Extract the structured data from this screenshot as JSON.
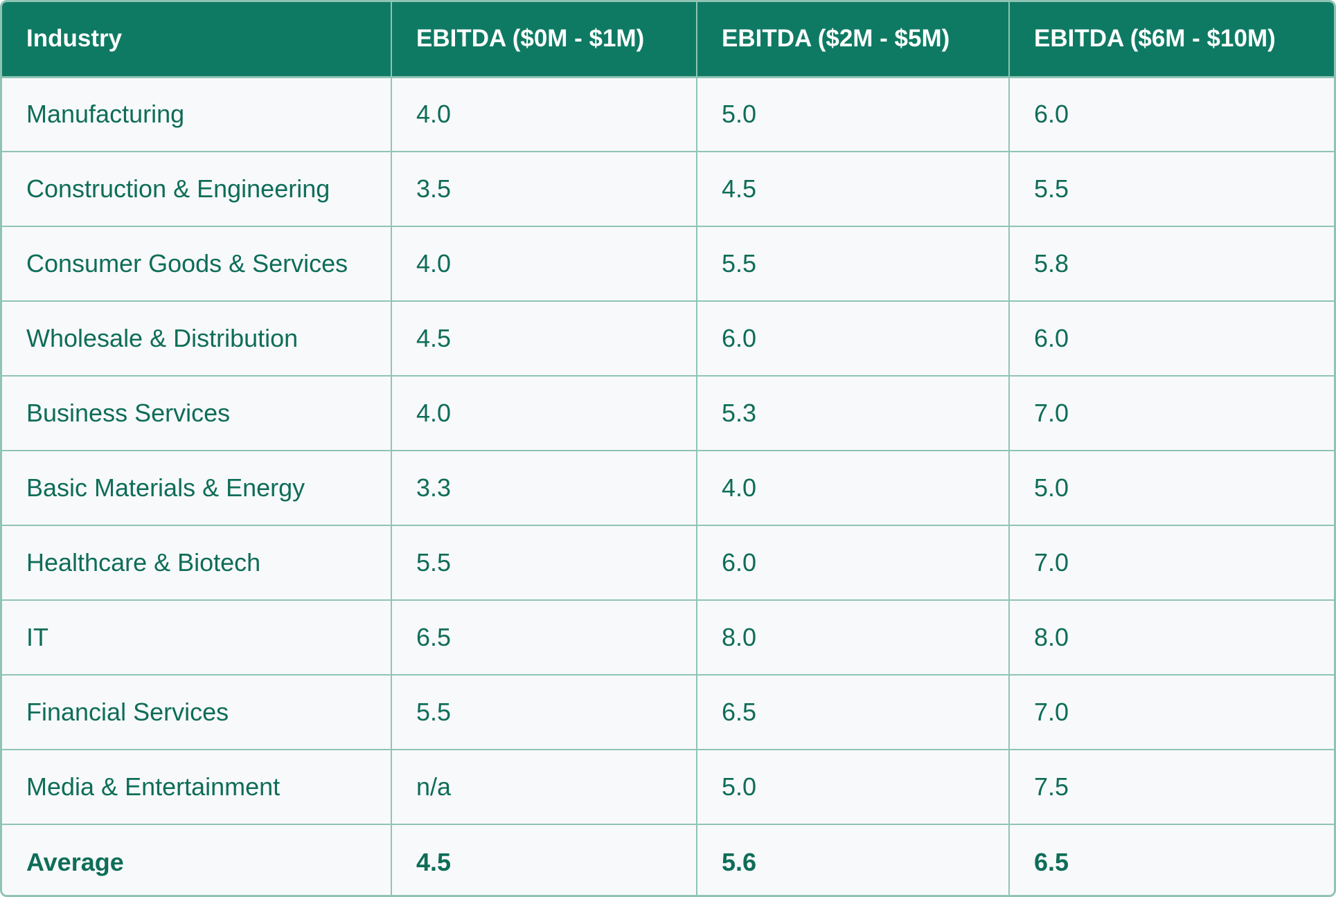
{
  "columns": [
    "Industry",
    "EBITDA ($0M - $1M)",
    "EBITDA ($2M - $5M)",
    "EBITDA ($6M - $10M)"
  ],
  "rows": [
    [
      "Manufacturing",
      "4.0",
      "5.0",
      "6.0"
    ],
    [
      "Construction & Engineering",
      "3.5",
      "4.5",
      "5.5"
    ],
    [
      "Consumer Goods & Services",
      "4.0",
      "5.5",
      "5.8"
    ],
    [
      "Wholesale & Distribution",
      "4.5",
      "6.0",
      "6.0"
    ],
    [
      "Business Services",
      "4.0",
      "5.3",
      "7.0"
    ],
    [
      "Basic Materials & Energy",
      "3.3",
      "4.0",
      "5.0"
    ],
    [
      "Healthcare & Biotech",
      "5.5",
      "6.0",
      "7.0"
    ],
    [
      "IT",
      "6.5",
      "8.0",
      "8.0"
    ],
    [
      "Financial Services",
      "5.5",
      "6.5",
      "7.0"
    ],
    [
      "Media & Entertainment",
      "n/a",
      "5.0",
      "7.5"
    ]
  ],
  "average": [
    "Average",
    "4.5",
    "5.6",
    "6.5"
  ],
  "colors": {
    "header_bg": "#0f7a63",
    "header_text": "#ffffff",
    "cell_text": "#0e6d58",
    "border": "#8fc4b4",
    "cell_bg": "#f8f9fb"
  }
}
